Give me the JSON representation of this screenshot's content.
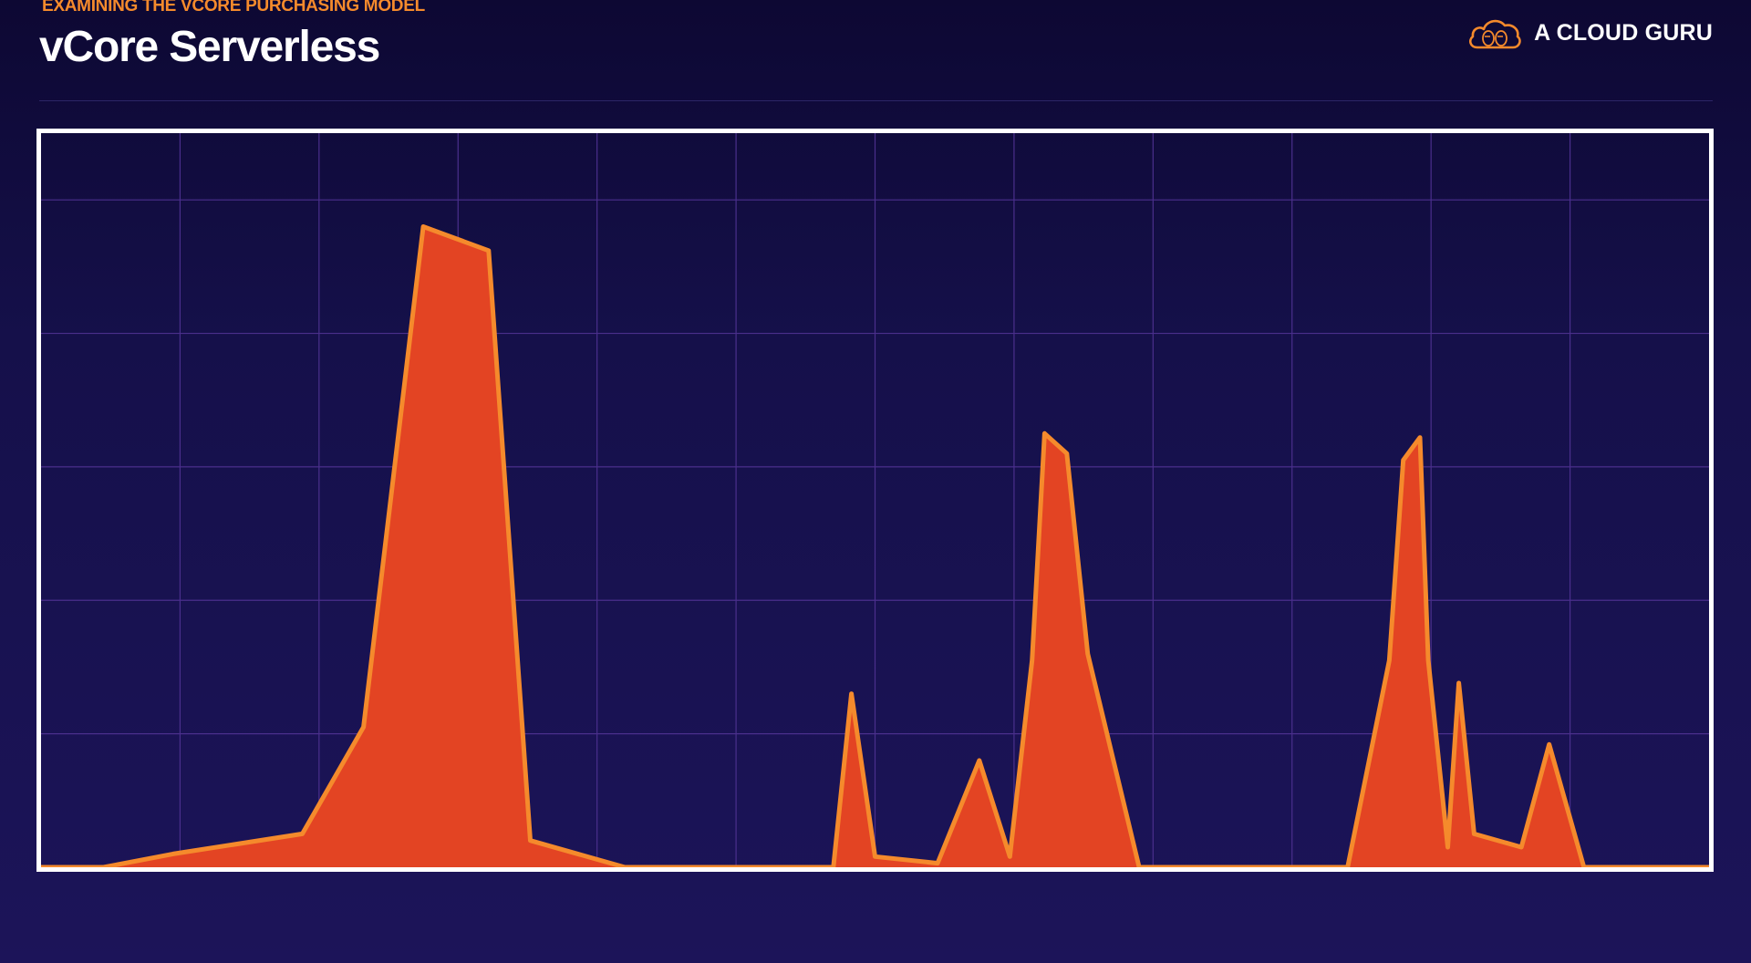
{
  "header": {
    "eyebrow": "EXAMINING THE VCORE PURCHASING MODEL",
    "title": "vCore Serverless",
    "brand_name": "A CLOUD GURU",
    "brand_icon": "cloud-logo-icon"
  },
  "colors": {
    "accent": "#f58a2c",
    "area_fill": "#e34423",
    "area_stroke": "#f58a2c",
    "grid": "#4a2f8c",
    "frame": "#ffffff",
    "background_top": "#0d0833",
    "background_bottom": "#1c1459"
  },
  "chart_data": {
    "type": "area",
    "title": "",
    "xlabel": "",
    "ylabel": "",
    "xlim": [
      0,
      12
    ],
    "ylim": [
      0,
      5.5
    ],
    "grid": true,
    "legend": "none",
    "x_gridlines": 12,
    "y_gridlines": 5.5,
    "series": [
      {
        "values": [
          [
            0,
            0
          ],
          [
            0.45,
            0
          ],
          [
            0.95,
            0.1
          ],
          [
            1.88,
            0.25
          ],
          [
            2.32,
            1.05
          ],
          [
            2.75,
            4.8
          ],
          [
            3.22,
            4.62
          ],
          [
            3.52,
            0.2
          ],
          [
            4.2,
            0
          ],
          [
            5.7,
            0
          ],
          [
            5.83,
            1.3
          ],
          [
            6.0,
            0.08
          ],
          [
            6.45,
            0.03
          ],
          [
            6.75,
            0.8
          ],
          [
            6.97,
            0.08
          ],
          [
            7.13,
            1.55
          ],
          [
            7.22,
            3.25
          ],
          [
            7.38,
            3.1
          ],
          [
            7.53,
            1.6
          ],
          [
            7.9,
            0
          ],
          [
            9.4,
            0
          ],
          [
            9.7,
            1.55
          ],
          [
            9.8,
            3.05
          ],
          [
            9.92,
            3.22
          ],
          [
            9.98,
            1.55
          ],
          [
            10.12,
            0.15
          ],
          [
            10.2,
            1.38
          ],
          [
            10.31,
            0.25
          ],
          [
            10.65,
            0.15
          ],
          [
            10.85,
            0.92
          ],
          [
            11.1,
            0
          ],
          [
            12.0,
            0
          ]
        ]
      }
    ]
  }
}
